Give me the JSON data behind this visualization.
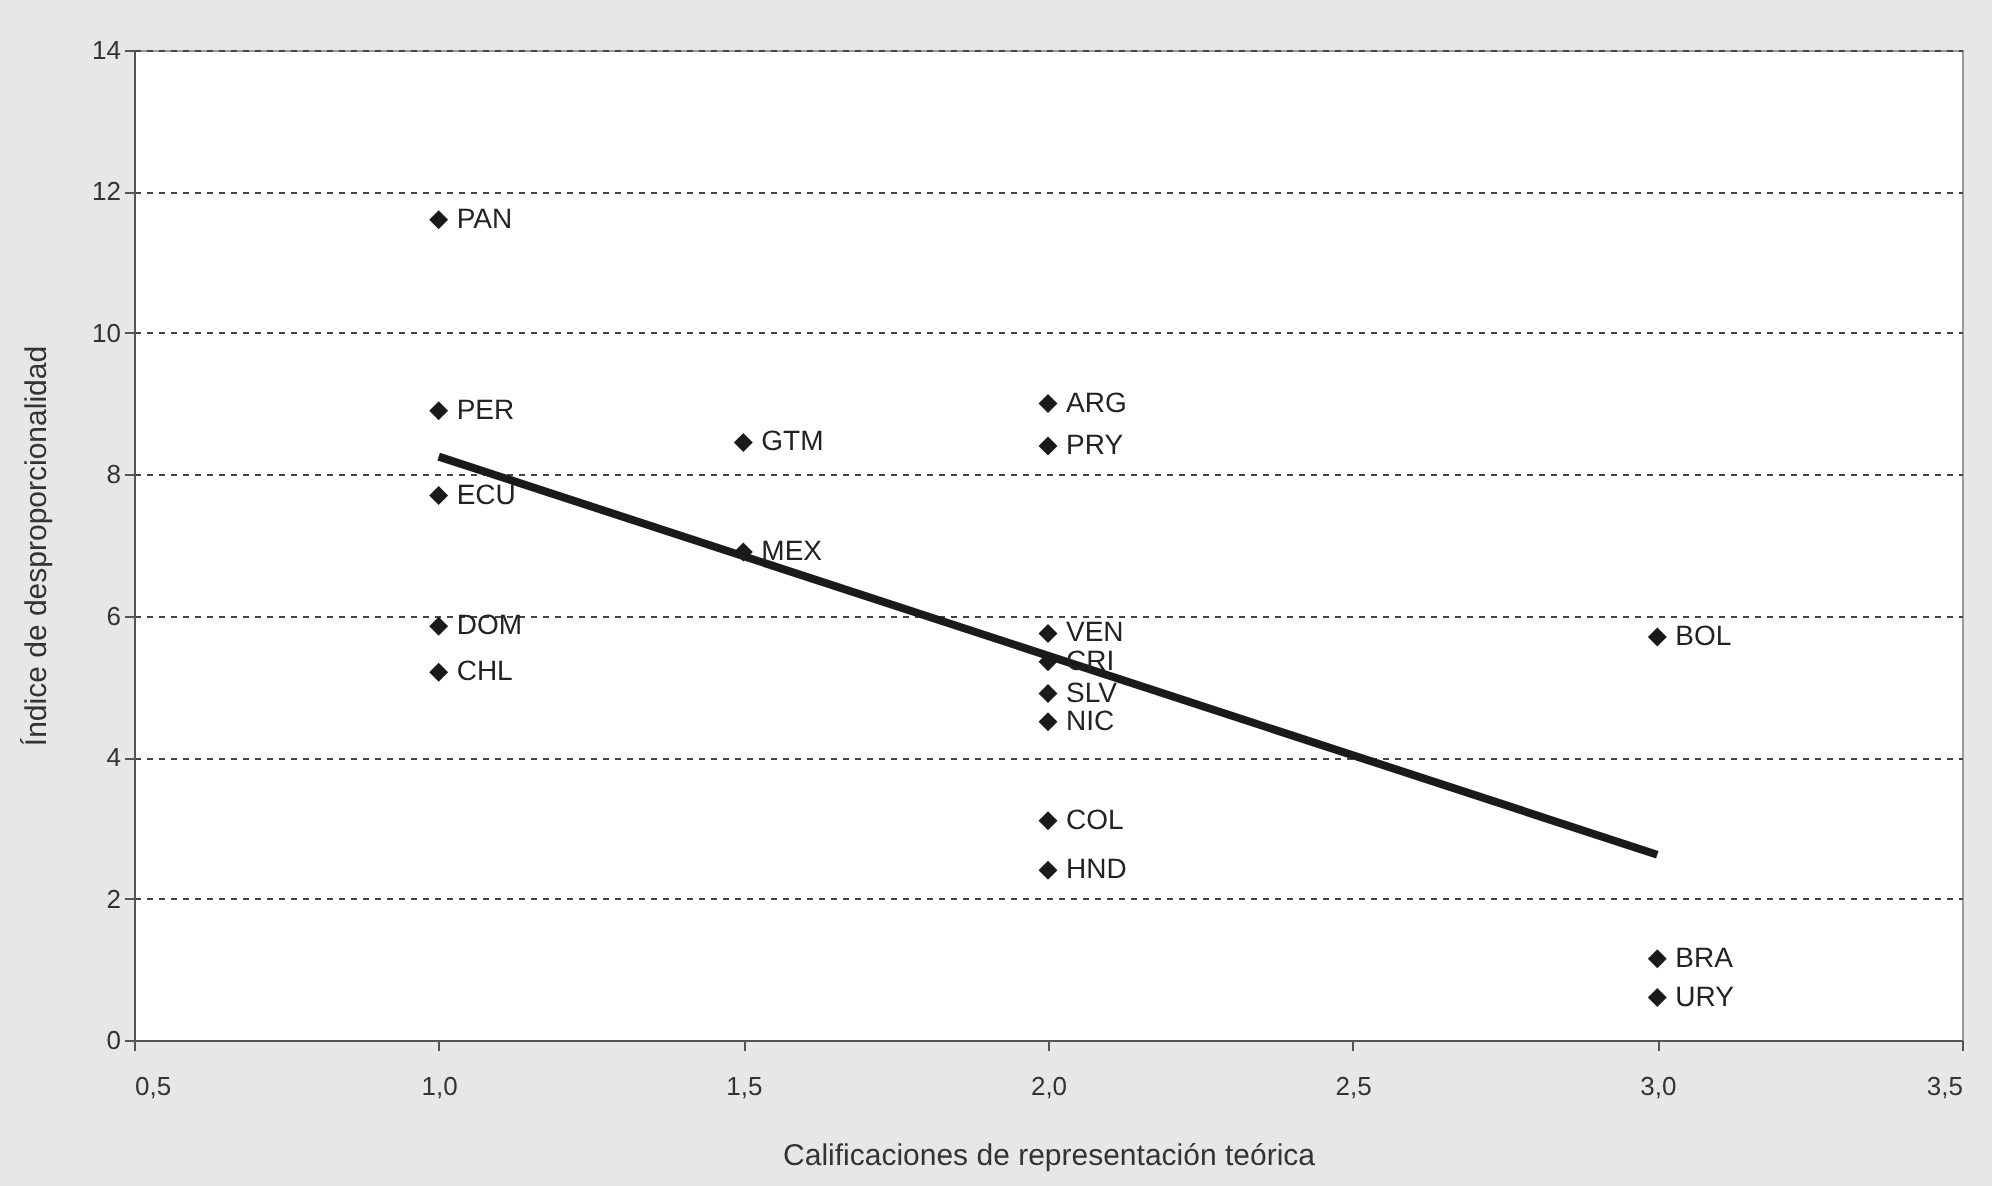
{
  "chart_data": {
    "type": "scatter",
    "xlabel": "Calificaciones de representación teórica",
    "ylabel": "Índice de desproporcionalidad",
    "series": [
      {
        "color": "#1a1a1a",
        "x": [
          1,
          1,
          1,
          1.5,
          1.5,
          1,
          1,
          2,
          2,
          2,
          2,
          2,
          2,
          2,
          2,
          3,
          3,
          3
        ],
        "values": [
          11.6,
          8.9,
          7.7,
          8.45,
          6.9,
          5.85,
          5.2,
          9.0,
          8.4,
          5.75,
          5.35,
          4.9,
          4.5,
          3.1,
          2.4,
          5.7,
          1.15,
          0.6
        ]
      },
      {
        "type": "line",
        "marker": "none",
        "color": "#1a1a1a",
        "x": [
          1,
          3
        ],
        "values": [
          8.25,
          2.62
        ]
      }
    ],
    "annotations": [
      {
        "text": "PAN",
        "x": 1,
        "y": 11.6
      },
      {
        "text": "PER",
        "x": 1,
        "y": 8.9
      },
      {
        "text": "ECU",
        "x": 1,
        "y": 7.7
      },
      {
        "text": "GTM",
        "x": 1.5,
        "y": 8.45
      },
      {
        "text": "MEX",
        "x": 1.5,
        "y": 6.9
      },
      {
        "text": "DOM",
        "x": 1,
        "y": 5.85
      },
      {
        "text": "CHL",
        "x": 1,
        "y": 5.2
      },
      {
        "text": "ARG",
        "x": 2,
        "y": 9.0
      },
      {
        "text": "PRY",
        "x": 2,
        "y": 8.4
      },
      {
        "text": "VEN",
        "x": 2,
        "y": 5.75
      },
      {
        "text": "CRI",
        "x": 2,
        "y": 5.35
      },
      {
        "text": "SLV",
        "x": 2,
        "y": 4.9
      },
      {
        "text": "NIC",
        "x": 2,
        "y": 4.5
      },
      {
        "text": "COL",
        "x": 2,
        "y": 3.1
      },
      {
        "text": "HND",
        "x": 2,
        "y": 2.4
      },
      {
        "text": "BOL",
        "x": 3,
        "y": 5.7
      },
      {
        "text": "BRA",
        "x": 3,
        "y": 1.15
      },
      {
        "text": "URY",
        "x": 3,
        "y": 0.6
      }
    ],
    "xlim": [
      0.5,
      3.5
    ],
    "xticks": [
      {
        "value": 0.5,
        "label": "0,5"
      },
      {
        "value": 1,
        "label": "1,0"
      },
      {
        "value": 1.5,
        "label": "1,5"
      },
      {
        "value": 2,
        "label": "2,0"
      },
      {
        "value": 2.5,
        "label": "2,5"
      },
      {
        "value": 3,
        "label": "3,0"
      },
      {
        "value": 3.5,
        "label": "3,5"
      }
    ],
    "ylim": [
      0,
      14
    ],
    "yticks": [
      0,
      2,
      4,
      6,
      8,
      10,
      12,
      14
    ],
    "grid": "y",
    "marker": "diamond",
    "legend": false
  }
}
